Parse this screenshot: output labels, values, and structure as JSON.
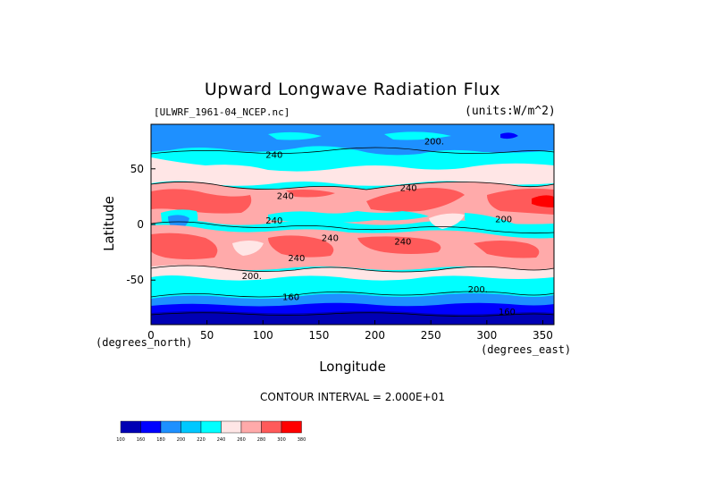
{
  "title": "Upward Longwave Radiation Flux",
  "filename": "[ULWRF_1961-04_NCEP.nc]",
  "units": "(units:W/m^2)",
  "xlabel": "Longitude",
  "ylabel": "Latitude",
  "x_units_note": "(degrees_east)",
  "y_units_note": "(degrees_north)",
  "contour_interval": "CONTOUR INTERVAL = 2.000E+01",
  "chart_data": {
    "type": "heatmap",
    "title": "Upward Longwave Radiation Flux",
    "xlabel": "Longitude",
    "ylabel": "Latitude",
    "xlim": [
      0,
      360
    ],
    "ylim": [
      -90,
      90
    ],
    "x_ticks": [
      0,
      50,
      100,
      150,
      200,
      250,
      300,
      350
    ],
    "y_ticks": [
      50,
      0,
      -50
    ],
    "contour_interval": 20,
    "contour_labels": [
      "200.",
      "200.",
      "240",
      "240",
      "240",
      "240",
      "240",
      "240",
      "240",
      "200.",
      "200.",
      "160",
      "160",
      "200"
    ],
    "colorbar": {
      "levels": [
        100,
        160,
        180,
        200,
        220,
        240,
        260,
        280,
        300,
        380
      ],
      "tick_labels": [
        "100",
        "160",
        "180",
        "200",
        "220",
        "240",
        "260",
        "280",
        "300",
        "380"
      ],
      "colors": [
        "#0000b4",
        "#0000ff",
        "#1e90ff",
        "#00c8ff",
        "#00ffff",
        "#ffe6e6",
        "#ffaaaa",
        "#ff5a5a",
        "#ff0000"
      ]
    }
  }
}
